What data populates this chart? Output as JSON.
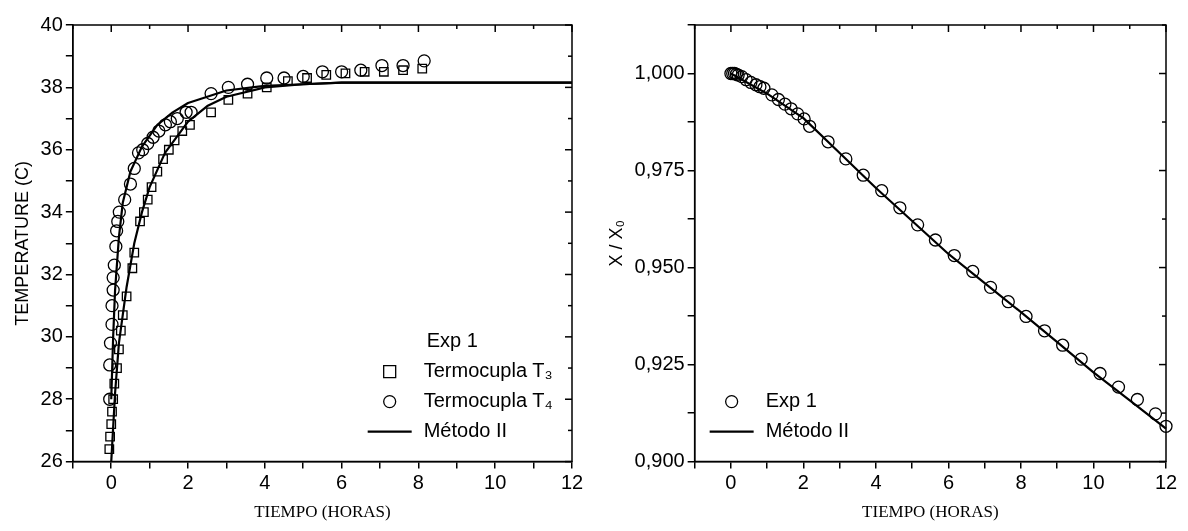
{
  "chart_data": [
    {
      "type": "scatter",
      "xlabel": "TIEMPO (HORAS)",
      "ylabel": "TEMPERATURE (C)",
      "legend_title": "Exp 1",
      "legend": "bottom right",
      "grid": false,
      "xlim": [
        -1,
        12
      ],
      "xticks": [
        {
          "value": -1,
          "label": null
        },
        0,
        {
          "value": 1,
          "label": null
        },
        2,
        {
          "value": 3,
          "label": null
        },
        4,
        {
          "value": 5,
          "label": null
        },
        6,
        {
          "value": 7,
          "label": null
        },
        8,
        {
          "value": 9,
          "label": null
        },
        10,
        {
          "value": 11,
          "label": null
        },
        12
      ],
      "ylim": [
        26,
        40
      ],
      "yticks": [
        26,
        {
          "value": 27,
          "label": null
        },
        28,
        {
          "value": 29,
          "label": null
        },
        30,
        {
          "value": 31,
          "label": null
        },
        32,
        {
          "value": 33,
          "label": null
        },
        34,
        {
          "value": 35,
          "label": null
        },
        36,
        {
          "value": 37,
          "label": null
        },
        38,
        {
          "value": 39,
          "label": null
        },
        40
      ],
      "series": [
        {
          "name": "Termocupla T₃",
          "type": "scatter",
          "marker": "square",
          "color": "#000000",
          "x": [
            -0.05,
            -0.03,
            0,
            0.02,
            0.05,
            0.08,
            0.15,
            0.2,
            0.25,
            0.3,
            0.4,
            0.55,
            0.6,
            0.75,
            0.85,
            0.95,
            1.05,
            1.2,
            1.35,
            1.5,
            1.65,
            1.85,
            2.05,
            2.6,
            3.05,
            3.55,
            4.05,
            4.6,
            5.1,
            5.6,
            6.1,
            6.6,
            7.1,
            7.6,
            8.1
          ],
          "values": [
            26.4,
            26.8,
            27.2,
            27.6,
            28.0,
            28.5,
            29.0,
            29.6,
            30.2,
            30.7,
            31.3,
            32.2,
            32.7,
            33.7,
            34.0,
            34.4,
            34.8,
            35.3,
            35.7,
            36.0,
            36.3,
            36.6,
            36.8,
            37.2,
            37.6,
            37.8,
            38.0,
            38.2,
            38.3,
            38.4,
            38.45,
            38.5,
            38.5,
            38.55,
            38.6
          ]
        },
        {
          "name": "Termocupla T₄",
          "type": "scatter",
          "marker": "circle",
          "color": "#000000",
          "x": [
            -0.04,
            -0.04,
            -0.02,
            0.02,
            0.02,
            0.05,
            0.05,
            0.08,
            0.12,
            0.14,
            0.17,
            0.21,
            0.35,
            0.5,
            0.6,
            0.71,
            0.82,
            0.95,
            1.09,
            1.24,
            1.41,
            1.54,
            1.72,
            1.95,
            2.08,
            2.6,
            3.05,
            3.55,
            4.05,
            4.5,
            5.0,
            5.5,
            6.0,
            6.5,
            7.05,
            7.6,
            8.15
          ],
          "values": [
            28.0,
            29.1,
            29.8,
            30.4,
            31.0,
            31.5,
            31.9,
            32.3,
            32.9,
            33.4,
            33.7,
            34.0,
            34.4,
            34.9,
            35.4,
            35.9,
            36.0,
            36.2,
            36.4,
            36.6,
            36.8,
            36.9,
            37.0,
            37.2,
            37.2,
            37.8,
            38.0,
            38.1,
            38.3,
            38.3,
            38.35,
            38.5,
            38.5,
            38.55,
            38.7,
            38.7,
            38.85
          ]
        },
        {
          "name": "Método II",
          "type": "line",
          "marker": "none",
          "line_style": "solid",
          "color": "#000000",
          "x": [
            0,
            0.1,
            0.2,
            0.4,
            0.6,
            0.8,
            1.0,
            1.4,
            2.0,
            2.5,
            3.0,
            4.0,
            5.0,
            6.0,
            12.0
          ],
          "values": [
            26.0,
            28.2,
            29.8,
            31.6,
            33.0,
            34.0,
            34.8,
            35.9,
            36.9,
            37.4,
            37.7,
            38.0,
            38.1,
            38.15,
            38.15
          ]
        },
        {
          "type": "line",
          "marker": "none",
          "line_style": "solid",
          "color": "#000000",
          "x": [
            0,
            0.05,
            0.1,
            0.2,
            0.3,
            0.5,
            0.8,
            1.2,
            1.6,
            2.0,
            2.5,
            3.0,
            4.0,
            5.0,
            6.0,
            12.0
          ],
          "values": [
            28.0,
            30.0,
            31.5,
            33.2,
            34.3,
            35.3,
            36.1,
            36.8,
            37.2,
            37.5,
            37.7,
            37.9,
            38.05,
            38.1,
            38.15,
            38.15
          ]
        }
      ]
    },
    {
      "type": "scatter",
      "xlabel": "TIEMPO (HORAS)",
      "ylabel": "X / X₀",
      "legend": "bottom left",
      "grid": false,
      "xlim": [
        -1,
        12
      ],
      "xticks": [
        {
          "value": -1,
          "label": null
        },
        0,
        {
          "value": 1,
          "label": null
        },
        2,
        {
          "value": 3,
          "label": null
        },
        4,
        {
          "value": 5,
          "label": null
        },
        6,
        {
          "value": 7,
          "label": null
        },
        8,
        {
          "value": 9,
          "label": null
        },
        10,
        {
          "value": 11,
          "label": null
        },
        12
      ],
      "ylim": [
        0.9,
        1.0125
      ],
      "yticks": [
        {
          "value": 0.9,
          "label": "0,900"
        },
        {
          "value": 0.9125,
          "label": null
        },
        {
          "value": 0.925,
          "label": "0,925"
        },
        {
          "value": 0.9375,
          "label": null
        },
        {
          "value": 0.95,
          "label": "0,950"
        },
        {
          "value": 0.9625,
          "label": null
        },
        {
          "value": 0.975,
          "label": "0,975"
        },
        {
          "value": 0.9875,
          "label": null
        },
        {
          "value": 1.0,
          "label": "1,000"
        },
        {
          "value": 1.0125,
          "label": null
        }
      ],
      "series": [
        {
          "name": "Exp 1",
          "type": "scatter",
          "marker": "circle",
          "color": "#000000",
          "x": [
            0,
            0.05,
            0.1,
            0.15,
            0.2,
            0.3,
            0.42,
            0.55,
            0.69,
            0.8,
            0.91,
            1.13,
            1.31,
            1.49,
            1.66,
            1.84,
            2.02,
            2.17,
            2.68,
            3.17,
            3.65,
            4.16,
            4.66,
            5.15,
            5.64,
            6.16,
            6.67,
            7.16,
            7.65,
            8.14,
            8.65,
            9.15,
            9.66,
            10.18,
            10.69,
            11.21,
            11.71,
            12.0
          ],
          "values": [
            1.0,
            1.0,
            1.0,
            0.9998,
            0.9996,
            0.9992,
            0.9984,
            0.9977,
            0.9971,
            0.9966,
            0.9962,
            0.9945,
            0.9933,
            0.9921,
            0.9909,
            0.9896,
            0.9883,
            0.9864,
            0.9824,
            0.978,
            0.9738,
            0.9698,
            0.9654,
            0.961,
            0.9571,
            0.9531,
            0.949,
            0.9449,
            0.9412,
            0.9374,
            0.9337,
            0.93,
            0.9264,
            0.9227,
            0.9192,
            0.916,
            0.9123,
            0.9091
          ]
        },
        {
          "name": "Método II",
          "type": "line",
          "marker": "none",
          "line_style": "solid",
          "color": "#000000",
          "x": [
            0,
            1,
            2,
            3,
            4,
            5,
            6,
            7,
            8,
            9,
            10,
            11,
            12
          ],
          "values": [
            1.0,
            0.9948,
            0.9885,
            0.9795,
            0.9705,
            0.962,
            0.9535,
            0.946,
            0.9385,
            0.9308,
            0.923,
            0.9158,
            0.9085
          ]
        }
      ]
    }
  ]
}
